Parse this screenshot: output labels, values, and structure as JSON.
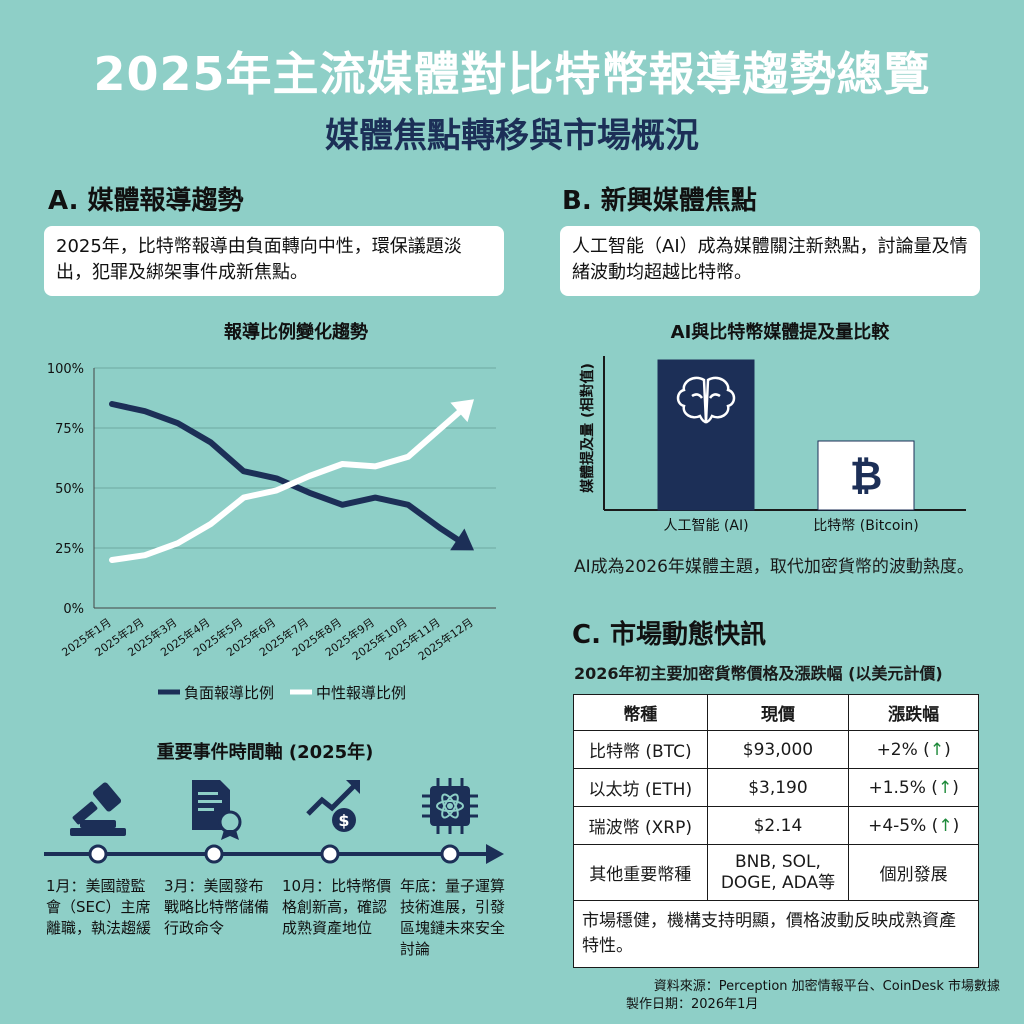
{
  "header": {
    "title": "2025年主流媒體對比特幣報導趨勢總覽",
    "subtitle": "媒體焦點轉移與市場概況"
  },
  "section_a": {
    "heading": "A. 媒體報導趨勢",
    "note": "2025年，比特幣報導由負面轉向中性，環保議題淡出，犯罪及綁架事件成新焦點。",
    "chart_title": "報導比例變化趨勢"
  },
  "section_b": {
    "heading": "B. 新興媒體焦點",
    "note": "人工智能（AI）成為媒體關注新熱點，討論量及情緒波動均超越比特幣。",
    "chart_title": "AI與比特幣媒體提及量比較",
    "caption": "AI成為2026年媒體主題，取代加密貨幣的波動熱度。"
  },
  "section_c": {
    "heading": "C. 市場動態快訊",
    "table_title": "2026年初主要加密貨幣價格及漲跌幅 (以美元計價)",
    "columns": [
      "幣種",
      "現價",
      "漲跌幅"
    ],
    "rows": [
      {
        "coin": "比特幣 (BTC)",
        "price": "$93,000",
        "change": "+2%",
        "arrow": "↑"
      },
      {
        "coin": "以太坊 (ETH)",
        "price": "$3,190",
        "change": "+1.5%",
        "arrow": "↑"
      },
      {
        "coin": "瑞波幣 (XRP)",
        "price": "$2.14",
        "change": "+4-5%",
        "arrow": "↑"
      },
      {
        "coin": "其他重要幣種",
        "price": "BNB, SOL, DOGE, ADA等",
        "change": "個別發展",
        "arrow": ""
      }
    ],
    "note": "市場穩健，機構支持明顯，價格波動反映成熟資產特性。"
  },
  "timeline": {
    "title": "重要事件時間軸 (2025年)",
    "events": [
      {
        "text": "1月：美國證監會（SEC）主席離職，執法趨緩",
        "icon": "gavel-icon"
      },
      {
        "text": "3月：美國發布戰略比特幣儲備行政命令",
        "icon": "document-seal-icon"
      },
      {
        "text": "10月：比特幣價格創新高，確認成熟資產地位",
        "icon": "rising-chart-dollar-icon"
      },
      {
        "text": "年底：量子運算技術進展，引發區塊鏈未來安全討論",
        "icon": "quantum-chip-icon"
      }
    ]
  },
  "footer": {
    "source": "資料來源：Perception 加密情報平台、CoinDesk 市場數據",
    "date": "製作日期：2026年1月"
  },
  "colors": {
    "background": "#8ecfc7",
    "navy": "#1c2f57",
    "white": "#ffffff",
    "up_green": "#1e8a3a"
  },
  "chart_data": [
    {
      "type": "line",
      "title": "報導比例變化趨勢",
      "categories": [
        "2025年1月",
        "2025年2月",
        "2025年3月",
        "2025年4月",
        "2025年5月",
        "2025年6月",
        "2025年7月",
        "2025年8月",
        "2025年9月",
        "2025年10月",
        "2025年11月",
        "2025年12月"
      ],
      "series": [
        {
          "name": "負面報導比例",
          "color": "#1c2f57",
          "values": [
            85,
            82,
            77,
            69,
            57,
            54,
            48,
            43,
            46,
            43,
            33,
            24
          ]
        },
        {
          "name": "中性報導比例",
          "color": "#ffffff",
          "values": [
            20,
            22,
            27,
            35,
            46,
            49,
            55,
            60,
            59,
            63,
            75,
            87
          ]
        }
      ],
      "yticks": [
        "0%",
        "25%",
        "50%",
        "75%",
        "100%"
      ],
      "ylim": [
        0,
        100
      ],
      "grid": true,
      "legend": "bottom"
    },
    {
      "type": "bar",
      "title": "AI與比特幣媒體提及量比較",
      "ylabel": "媒體提及量 (相對值)",
      "categories": [
        "人工智能 (AI)",
        "比特幣 (Bitcoin)"
      ],
      "values": [
        100,
        46
      ],
      "colors": [
        "#1c2f57",
        "#ffffff"
      ],
      "icons": [
        "brain-icon",
        "bitcoin-icon"
      ]
    }
  ]
}
